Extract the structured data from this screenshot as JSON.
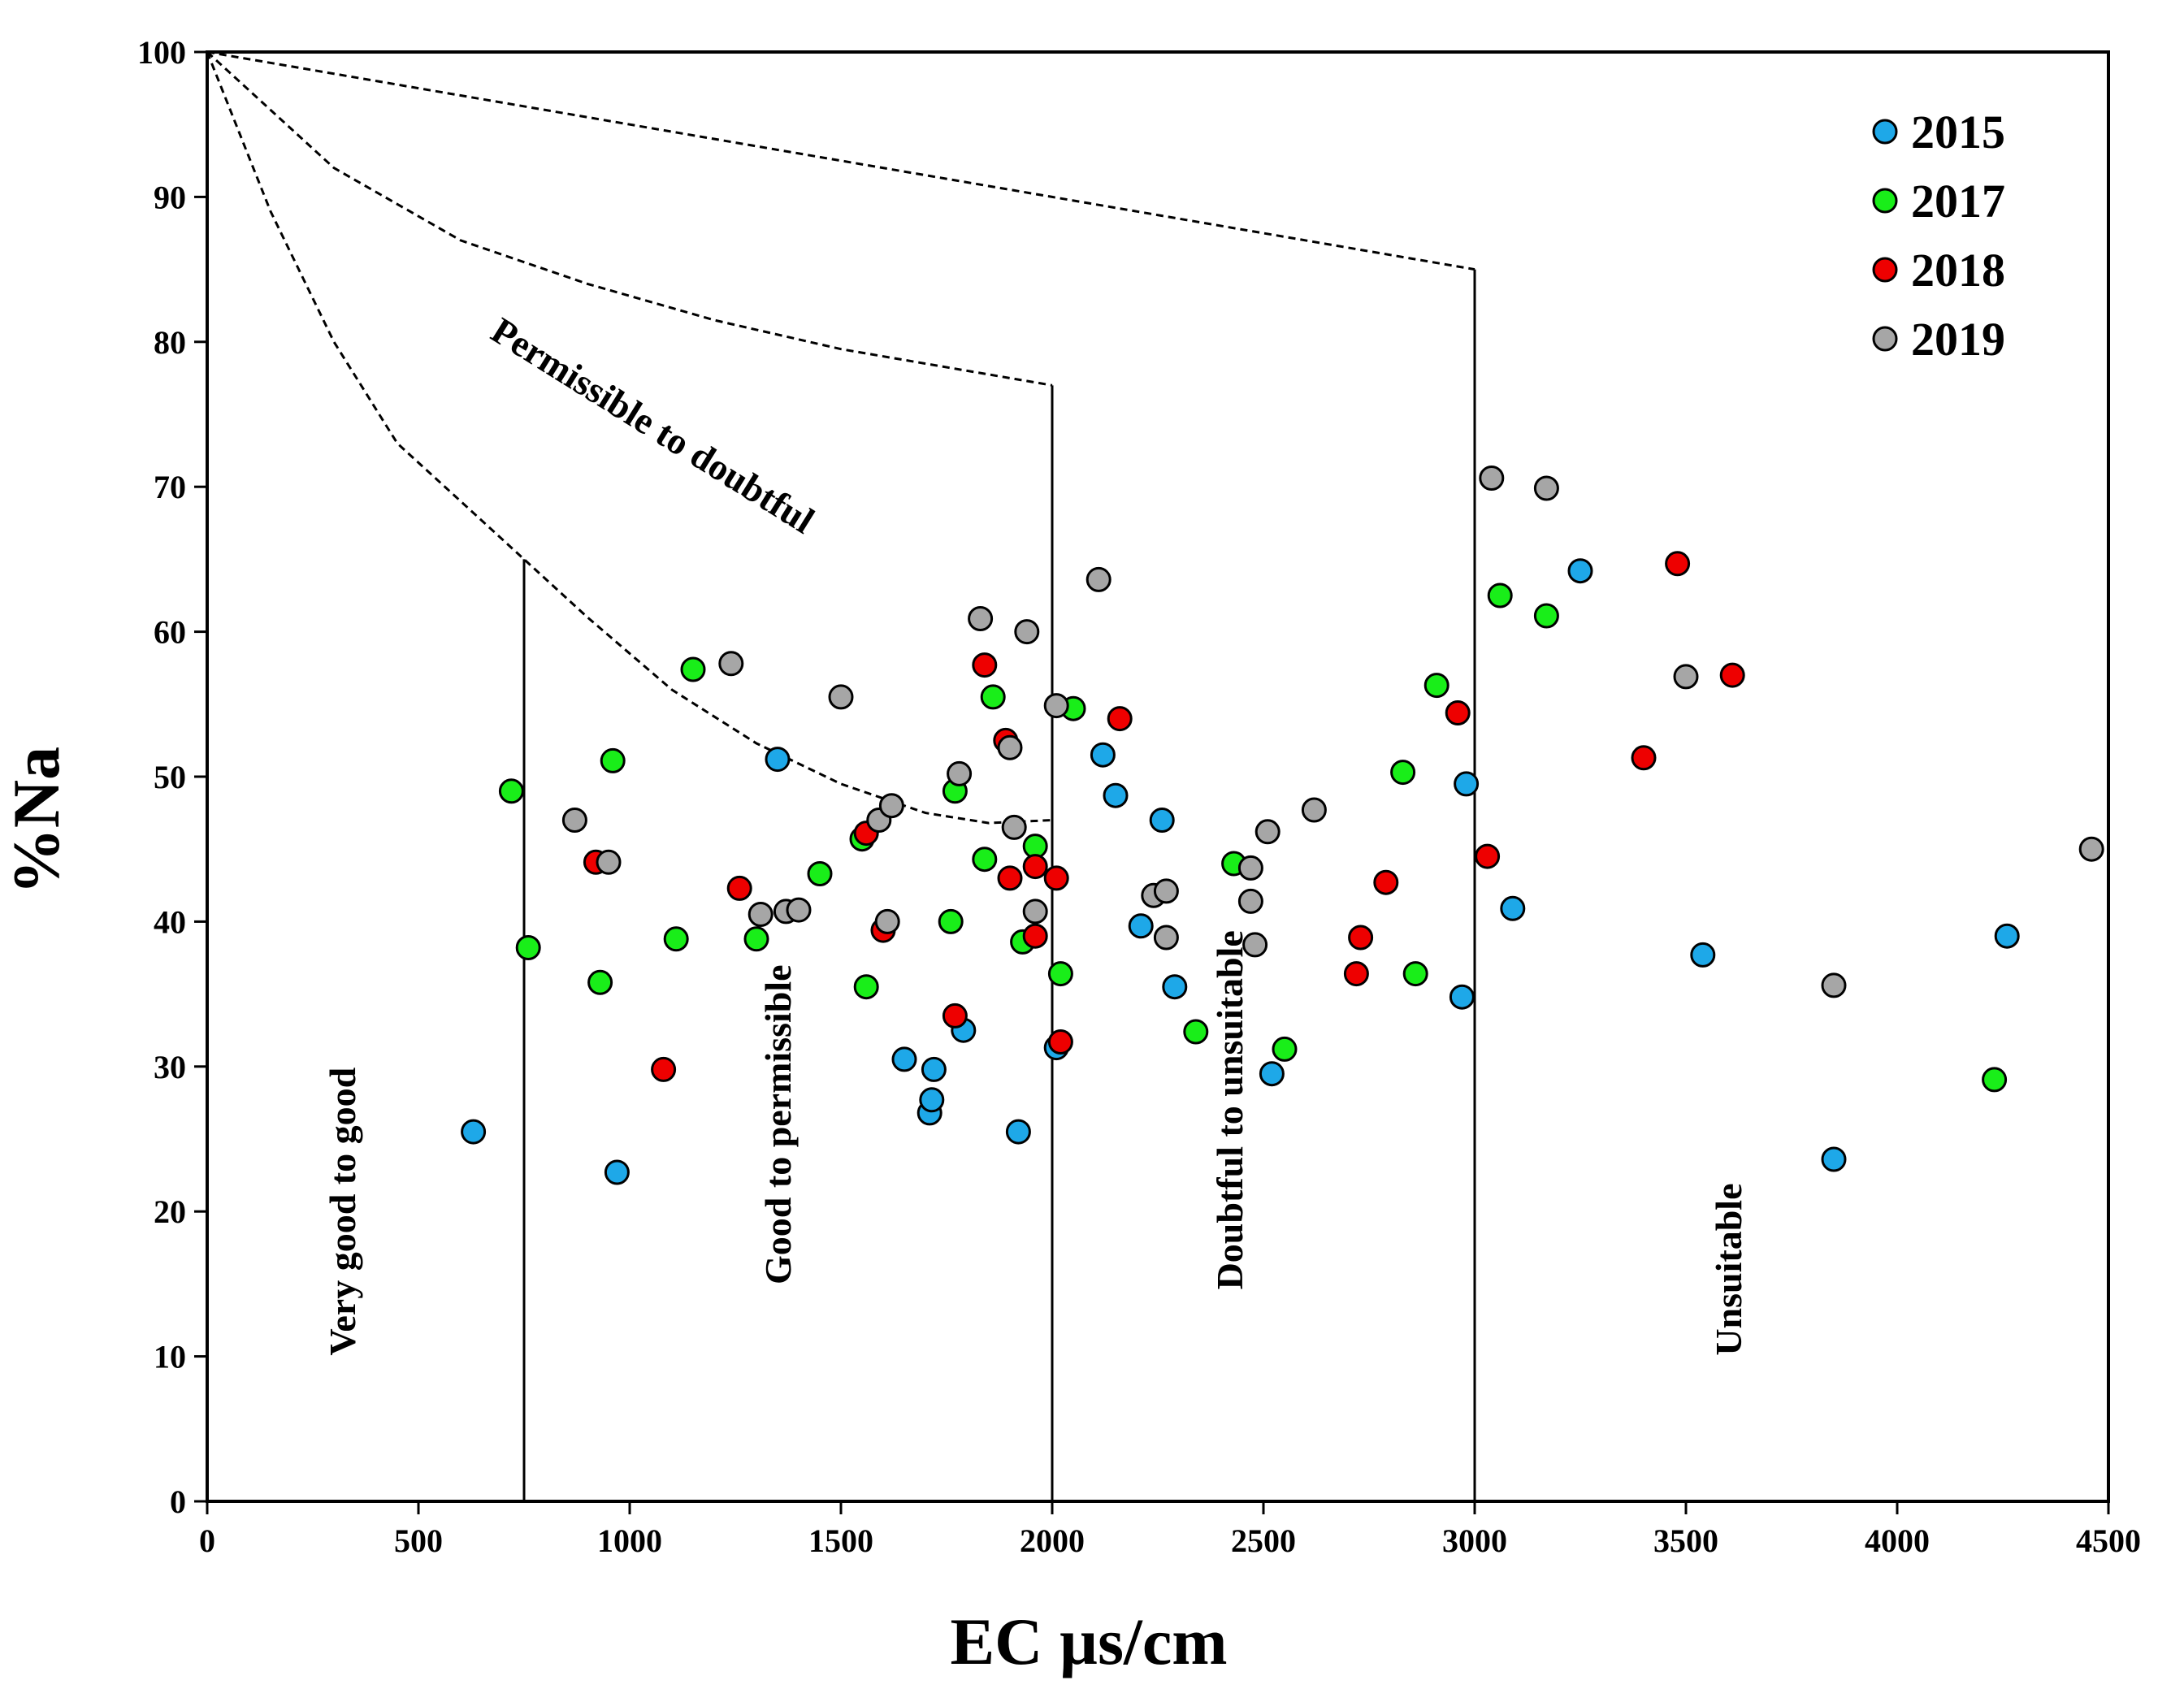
{
  "chart_data": {
    "type": "scatter",
    "title": "",
    "xlabel": "EC µs/cm",
    "ylabel": "%Na",
    "xlim": [
      0,
      4500
    ],
    "ylim": [
      0,
      100
    ],
    "xticks": [
      "0",
      "500",
      "1000",
      "1500",
      "2000",
      "2500",
      "3000",
      "3500",
      "4000",
      "4500"
    ],
    "yticks": [
      "0",
      "10",
      "20",
      "30",
      "40",
      "50",
      "60",
      "70",
      "80",
      "90",
      "100"
    ],
    "grid": false,
    "legend_position": "top-right",
    "colors": {
      "2015": "#1ea8e8",
      "2017": "#19ee19",
      "2018": "#ee0000",
      "2019": "#a6a6a6"
    },
    "boundaries": {
      "vertical_lines": [
        {
          "x": 750,
          "ytop": 65
        },
        {
          "x": 2000,
          "ytop": 77
        },
        {
          "x": 3000,
          "ytop": 85
        }
      ],
      "curves": [
        {
          "name": "very-good-upper",
          "points": [
            [
              0,
              100
            ],
            [
              150,
              89
            ],
            [
              300,
              80
            ],
            [
              450,
              73
            ],
            [
              600,
              69
            ],
            [
              750,
              65
            ],
            [
              900,
              61
            ],
            [
              1100,
              56
            ],
            [
              1300,
              52.3
            ],
            [
              1500,
              49.5
            ],
            [
              1700,
              47.5
            ],
            [
              1850,
              46.8
            ],
            [
              2000,
              47
            ]
          ]
        },
        {
          "name": "permissible-upper",
          "points": [
            [
              0,
              100
            ],
            [
              300,
              92
            ],
            [
              600,
              87
            ],
            [
              900,
              84
            ],
            [
              1200,
              81.5
            ],
            [
              1500,
              79.5
            ],
            [
              1800,
              78
            ],
            [
              2000,
              77
            ]
          ]
        },
        {
          "name": "doubtful-upper",
          "points": [
            [
              0,
              100
            ],
            [
              1000,
              95
            ],
            [
              2000,
              90
            ],
            [
              3000,
              85
            ]
          ]
        }
      ]
    },
    "region_labels": [
      {
        "text": "Very good to good",
        "x": 330,
        "y": 20,
        "rotate": -90
      },
      {
        "text": "Good to permissible",
        "x": 1360,
        "y": 26,
        "rotate": -90
      },
      {
        "text": "Doubtful to unsuitable",
        "x": 2430,
        "y": 27,
        "rotate": -90
      },
      {
        "text": "Unsuitable",
        "x": 3610,
        "y": 16,
        "rotate": -90
      },
      {
        "text": "Permissible to doubtful",
        "x": 1050,
        "y": 74,
        "rotate": 32
      }
    ],
    "series": [
      {
        "name": "2015",
        "points": [
          [
            630,
            25.5
          ],
          [
            970,
            22.7
          ],
          [
            1350,
            51.2
          ],
          [
            1650,
            30.5
          ],
          [
            1710,
            26.8
          ],
          [
            1715,
            27.7
          ],
          [
            1720,
            29.8
          ],
          [
            1790,
            32.5
          ],
          [
            1920,
            25.5
          ],
          [
            2010,
            31.3
          ],
          [
            2120,
            51.5
          ],
          [
            2150,
            48.7
          ],
          [
            2210,
            39.7
          ],
          [
            2260,
            47
          ],
          [
            2290,
            35.5
          ],
          [
            2520,
            29.5
          ],
          [
            2970,
            34.8
          ],
          [
            2980,
            49.5
          ],
          [
            3090,
            40.9
          ],
          [
            3250,
            64.2
          ],
          [
            3540,
            37.7
          ],
          [
            3850,
            23.6
          ],
          [
            4260,
            39
          ]
        ]
      },
      {
        "name": "2017",
        "points": [
          [
            720,
            49
          ],
          [
            760,
            38.2
          ],
          [
            930,
            35.8
          ],
          [
            960,
            51.1
          ],
          [
            1110,
            38.8
          ],
          [
            1150,
            57.4
          ],
          [
            1300,
            38.8
          ],
          [
            1450,
            43.3
          ],
          [
            1550,
            45.7
          ],
          [
            1560,
            35.5
          ],
          [
            1760,
            40
          ],
          [
            1770,
            49
          ],
          [
            1840,
            44.3
          ],
          [
            1860,
            55.5
          ],
          [
            1930,
            38.6
          ],
          [
            1960,
            45.2
          ],
          [
            2020,
            36.4
          ],
          [
            2050,
            54.7
          ],
          [
            2340,
            32.4
          ],
          [
            2430,
            44
          ],
          [
            2550,
            31.2
          ],
          [
            2830,
            50.3
          ],
          [
            2860,
            36.4
          ],
          [
            2910,
            56.3
          ],
          [
            3060,
            62.5
          ],
          [
            3170,
            61.1
          ],
          [
            4230,
            29.1
          ]
        ]
      },
      {
        "name": "2018",
        "points": [
          [
            920,
            44.1
          ],
          [
            1080,
            29.8
          ],
          [
            1260,
            42.3
          ],
          [
            1560,
            46.1
          ],
          [
            1600,
            39.4
          ],
          [
            1770,
            33.5
          ],
          [
            1840,
            57.7
          ],
          [
            1890,
            52.5
          ],
          [
            1900,
            43
          ],
          [
            1960,
            43.8
          ],
          [
            1960,
            39
          ],
          [
            2010,
            43
          ],
          [
            2020,
            31.7
          ],
          [
            2160,
            54
          ],
          [
            2720,
            36.4
          ],
          [
            2730,
            38.9
          ],
          [
            2790,
            42.7
          ],
          [
            2960,
            54.4
          ],
          [
            3030,
            44.5
          ],
          [
            3400,
            51.3
          ],
          [
            3480,
            64.7
          ],
          [
            3610,
            57
          ]
        ]
      },
      {
        "name": "2019",
        "points": [
          [
            870,
            47
          ],
          [
            950,
            44.1
          ],
          [
            1240,
            57.8
          ],
          [
            1310,
            40.5
          ],
          [
            1370,
            40.7
          ],
          [
            1400,
            40.8
          ],
          [
            1500,
            55.5
          ],
          [
            1590,
            47
          ],
          [
            1610,
            40
          ],
          [
            1620,
            48
          ],
          [
            1780,
            50.2
          ],
          [
            1830,
            60.9
          ],
          [
            1900,
            52
          ],
          [
            1910,
            46.5
          ],
          [
            1940,
            60
          ],
          [
            1960,
            40.7
          ],
          [
            2010,
            54.9
          ],
          [
            2110,
            63.6
          ],
          [
            2240,
            41.8
          ],
          [
            2270,
            42.1
          ],
          [
            2270,
            38.9
          ],
          [
            2470,
            43.7
          ],
          [
            2470,
            41.4
          ],
          [
            2480,
            38.4
          ],
          [
            2510,
            46.2
          ],
          [
            2620,
            47.7
          ],
          [
            3040,
            70.6
          ],
          [
            3170,
            69.9
          ],
          [
            3500,
            56.9
          ],
          [
            3850,
            35.6
          ],
          [
            4460,
            45
          ]
        ]
      }
    ]
  }
}
